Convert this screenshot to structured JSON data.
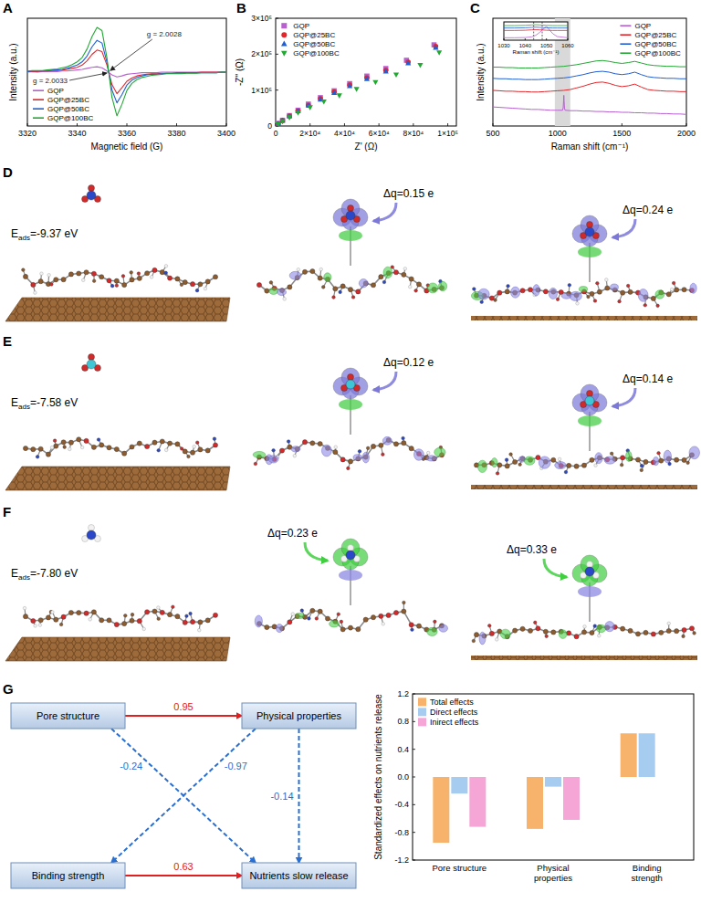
{
  "figure": {
    "panel_letters": [
      "A",
      "B",
      "C",
      "D",
      "E",
      "F",
      "G"
    ]
  },
  "chart_data": [
    {
      "type": "line",
      "x_label": "Magnetic field (G)",
      "y_label": "Intensity (a.u.)",
      "xlim": [
        3320,
        3400
      ],
      "xticks": [
        3320,
        3340,
        3360,
        3380,
        3400
      ],
      "ylim": [
        -1,
        1
      ],
      "tick_labels": "x",
      "legend": "bottom-left",
      "annotations": [
        "g = 2.0028",
        "g = 2.0033"
      ],
      "x": [
        3320,
        3322,
        3324,
        3326,
        3328,
        3330,
        3332,
        3334,
        3336,
        3338,
        3340,
        3342,
        3344,
        3346,
        3348,
        3350,
        3352,
        3354,
        3356,
        3358,
        3360,
        3362,
        3364,
        3366,
        3368,
        3370,
        3372,
        3374,
        3376,
        3378,
        3380,
        3382,
        3384,
        3386,
        3388,
        3390,
        3392,
        3394,
        3396,
        3398,
        3400
      ],
      "series": [
        {
          "name": "GQP",
          "color": "#b95fd2",
          "values": [
            0,
            0.01,
            0,
            0.01,
            0.01,
            0.01,
            0.01,
            0.02,
            0.02,
            0.03,
            0.04,
            0.05,
            0.07,
            0.09,
            0.1,
            0.08,
            0.02,
            -0.05,
            -0.09,
            -0.07,
            -0.04,
            -0.03,
            -0.02,
            -0.01,
            -0.01,
            -0.01,
            -0.01,
            0,
            0,
            0,
            0,
            0,
            0,
            0,
            0,
            0,
            0,
            0,
            0,
            0,
            0
          ]
        },
        {
          "name": "GQP@25BC",
          "color": "#e3262b",
          "values": [
            0.01,
            0.01,
            0.01,
            0.02,
            0.02,
            0.03,
            0.03,
            0.04,
            0.05,
            0.07,
            0.09,
            0.13,
            0.21,
            0.33,
            0.41,
            0.38,
            0.13,
            -0.23,
            -0.4,
            -0.29,
            -0.17,
            -0.11,
            -0.07,
            -0.05,
            -0.04,
            -0.03,
            -0.03,
            -0.02,
            -0.02,
            -0.02,
            -0.01,
            -0.01,
            -0.01,
            -0.01,
            -0.01,
            0,
            0,
            0,
            0,
            0,
            0
          ]
        },
        {
          "name": "GQP@50BC",
          "color": "#1f5fd6",
          "values": [
            0.01,
            0.02,
            0.02,
            0.02,
            0.03,
            0.04,
            0.04,
            0.05,
            0.07,
            0.1,
            0.13,
            0.19,
            0.3,
            0.47,
            0.59,
            0.54,
            0.18,
            -0.33,
            -0.57,
            -0.42,
            -0.24,
            -0.15,
            -0.1,
            -0.07,
            -0.05,
            -0.04,
            -0.04,
            -0.03,
            -0.02,
            -0.02,
            -0.02,
            -0.02,
            -0.01,
            -0.01,
            -0.01,
            -0.01,
            -0.01,
            -0.01,
            -0.01,
            0,
            0
          ]
        },
        {
          "name": "GQP@100BC",
          "color": "#22a833",
          "values": [
            0.02,
            0.03,
            0.03,
            0.03,
            0.04,
            0.05,
            0.06,
            0.08,
            0.1,
            0.14,
            0.19,
            0.27,
            0.43,
            0.66,
            0.83,
            0.77,
            0.26,
            -0.47,
            -0.81,
            -0.6,
            -0.34,
            -0.21,
            -0.14,
            -0.1,
            -0.08,
            -0.06,
            -0.05,
            -0.04,
            -0.03,
            -0.03,
            -0.03,
            -0.03,
            -0.02,
            -0.02,
            -0.02,
            -0.01,
            -0.01,
            -0.01,
            -0.01,
            0,
            0
          ]
        }
      ]
    },
    {
      "type": "scatter",
      "x_label": "Z' (Ω)",
      "y_label": "-Z'' (Ω)",
      "xlim": [
        0,
        105000
      ],
      "xticks": [
        0,
        {
          "value": 20000,
          "label": "2×10⁴"
        },
        {
          "value": 40000,
          "label": "4×10⁴"
        },
        {
          "value": 60000,
          "label": "6×10⁴"
        },
        {
          "value": 80000,
          "label": "8×10⁴"
        },
        {
          "value": 100000,
          "label": "1×10⁵"
        }
      ],
      "ylim": [
        0,
        300000
      ],
      "yticks": [
        0,
        {
          "value": 100000,
          "label": "1×10⁵"
        },
        {
          "value": 200000,
          "label": "2×10⁵"
        },
        {
          "value": 300000,
          "label": "3×10⁵"
        }
      ],
      "legend": "top-left",
      "series": [
        {
          "name": "GQP",
          "color": "#b95fd2",
          "marker": "square",
          "x": [
            1500,
            4000,
            8000,
            13000,
            19000,
            26000,
            34000,
            43000,
            53000,
            64000,
            76000,
            92000
          ],
          "values": [
            7000,
            16000,
            29000,
            44000,
            61000,
            79000,
            98000,
            118000,
            139000,
            160000,
            183000,
            226000
          ]
        },
        {
          "name": "GQP@25BC",
          "color": "#e3262b",
          "marker": "circle",
          "x": [
            1500,
            4000,
            8000,
            13000,
            19000,
            26000,
            34000,
            43000,
            53000,
            64000,
            77000,
            93000
          ],
          "values": [
            6000,
            15000,
            28000,
            42000,
            58000,
            76000,
            95000,
            114000,
            134000,
            155000,
            178000,
            222000
          ]
        },
        {
          "name": "GQP@50BC",
          "color": "#1f5fd6",
          "marker": "triangle",
          "x": [
            1500,
            4000,
            8000,
            13000,
            19000,
            26000,
            34000,
            43000,
            53000,
            64000,
            77000,
            93000
          ],
          "values": [
            6000,
            15000,
            27000,
            41000,
            57000,
            74000,
            92000,
            111000,
            131000,
            152000,
            175000,
            218000
          ]
        },
        {
          "name": "GQP@100BC",
          "color": "#22a833",
          "marker": "triangle-down",
          "x": [
            1500,
            4000,
            8000,
            13000,
            20000,
            28000,
            37000,
            47000,
            58000,
            70000,
            84000,
            95000
          ],
          "values": [
            5000,
            13000,
            24000,
            37000,
            52000,
            68000,
            85000,
            103000,
            122000,
            143000,
            170000,
            205000
          ]
        }
      ]
    },
    {
      "type": "line",
      "x_label": "Raman shift (cm⁻¹)",
      "y_label": "Intensity (a.u.)",
      "xlim": [
        500,
        2000
      ],
      "xticks": [
        500,
        1000,
        1500,
        2000
      ],
      "ylim": [
        0,
        13
      ],
      "tick_labels": "x",
      "legend": "top-right",
      "highlight": [
        980,
        1100
      ],
      "series": [
        {
          "name": "GQP",
          "color": "#b95fd2",
          "x": [
            500,
            550,
            600,
            650,
            700,
            750,
            800,
            850,
            900,
            950,
            1000,
            1040,
            1045,
            1048,
            1050,
            1052,
            1055,
            1060,
            1100,
            1150,
            1200,
            1250,
            1300,
            1350,
            1400,
            1450,
            1500,
            1550,
            1600,
            1650,
            1700,
            1750,
            1800,
            1850,
            1900,
            1950,
            2000
          ],
          "values": [
            2.3,
            2.25,
            2.2,
            2.15,
            2.1,
            2.05,
            2.0,
            2.0,
            1.95,
            1.9,
            1.9,
            1.9,
            2.2,
            3.0,
            3.7,
            3.0,
            2.1,
            1.9,
            1.85,
            1.85,
            1.8,
            1.8,
            1.75,
            1.75,
            1.7,
            1.7,
            1.65,
            1.65,
            1.6,
            1.6,
            1.55,
            1.55,
            1.5,
            1.5,
            1.45,
            1.45,
            1.4
          ]
        },
        {
          "name": "GQP@25BC",
          "color": "#e3262b",
          "x": [
            500,
            550,
            600,
            650,
            700,
            750,
            800,
            850,
            900,
            950,
            1000,
            1050,
            1100,
            1150,
            1200,
            1250,
            1300,
            1350,
            1400,
            1450,
            1500,
            1550,
            1600,
            1650,
            1700,
            1750,
            1800,
            1850,
            1900,
            1950,
            2000
          ],
          "values": [
            4.3,
            4.25,
            4.2,
            4.2,
            4.15,
            4.15,
            4.1,
            4.1,
            4.15,
            4.2,
            4.25,
            4.3,
            4.4,
            4.6,
            4.8,
            5.05,
            5.25,
            5.3,
            5.15,
            4.9,
            4.75,
            4.85,
            5.05,
            4.7,
            4.4,
            4.3,
            4.25,
            4.2,
            4.2,
            4.15,
            4.15
          ]
        },
        {
          "name": "GQP@50BC",
          "color": "#1f5fd6",
          "x": [
            500,
            550,
            600,
            650,
            700,
            750,
            800,
            850,
            900,
            950,
            1000,
            1050,
            1100,
            1150,
            1200,
            1250,
            1300,
            1350,
            1400,
            1450,
            1500,
            1550,
            1600,
            1650,
            1700,
            1750,
            1800,
            1850,
            1900,
            1950,
            2000
          ],
          "values": [
            5.75,
            5.7,
            5.7,
            5.65,
            5.65,
            5.6,
            5.6,
            5.6,
            5.65,
            5.7,
            5.75,
            5.8,
            5.9,
            6.05,
            6.2,
            6.4,
            6.55,
            6.6,
            6.5,
            6.3,
            6.2,
            6.3,
            6.5,
            6.2,
            5.95,
            5.85,
            5.8,
            5.75,
            5.75,
            5.7,
            5.7
          ]
        },
        {
          "name": "GQP@100BC",
          "color": "#22a833",
          "x": [
            500,
            550,
            600,
            650,
            700,
            750,
            800,
            850,
            900,
            950,
            1000,
            1050,
            1100,
            1150,
            1200,
            1250,
            1300,
            1350,
            1400,
            1450,
            1500,
            1550,
            1600,
            1650,
            1700,
            1750,
            1800,
            1850,
            1900,
            1950,
            2000
          ],
          "values": [
            7.1,
            7.1,
            7.05,
            7.05,
            7.0,
            7.0,
            7.0,
            7.0,
            7.05,
            7.1,
            7.15,
            7.2,
            7.3,
            7.4,
            7.55,
            7.7,
            7.85,
            7.9,
            7.8,
            7.65,
            7.55,
            7.65,
            7.8,
            7.6,
            7.4,
            7.3,
            7.25,
            7.2,
            7.2,
            7.15,
            7.15
          ]
        }
      ]
    },
    {
      "type": "line",
      "x_label": "Raman shift (cm⁻¹)",
      "xlim": [
        1030,
        1060
      ],
      "xticks": [
        1030,
        1040,
        1050,
        1060
      ],
      "ylim": [
        0,
        4.5
      ],
      "tick_labels": "x",
      "reference_lines": [
        1044,
        1048
      ],
      "x": [
        1030,
        1035,
        1040,
        1043,
        1045,
        1047,
        1050,
        1053,
        1055,
        1060
      ],
      "series": [
        {
          "color": "#b95fd2",
          "values": [
            0.6,
            0.6,
            0.65,
            0.8,
            1.2,
            2.0,
            3.4,
            1.6,
            0.9,
            0.6
          ]
        },
        {
          "color": "#e3262b",
          "values": [
            2.4,
            2.4,
            2.45,
            2.55,
            2.6,
            2.55,
            2.45,
            2.4,
            2.4,
            2.4
          ]
        },
        {
          "color": "#1f5fd6",
          "values": [
            3.0,
            3.0,
            3.05,
            3.15,
            3.2,
            3.15,
            3.05,
            3.0,
            3.0,
            3.0
          ]
        },
        {
          "color": "#22a833",
          "values": [
            3.6,
            3.6,
            3.65,
            3.75,
            3.8,
            3.75,
            3.65,
            3.6,
            3.6,
            3.6
          ]
        }
      ]
    },
    {
      "type": "bar",
      "y_label": "Standardized effects on nutrients release",
      "categories": [
        "Pore structure",
        "Physical properties",
        "Binding strength"
      ],
      "ylim": [
        -1.2,
        1.2
      ],
      "yticks": [
        -1.2,
        -0.8,
        -0.4,
        {
          "value": 0,
          "label": "0.0"
        },
        0.4,
        0.8,
        1.2
      ],
      "legend": "top-left",
      "series": [
        {
          "name": "Total effects",
          "color": "#f7b36b",
          "values": [
            -0.95,
            -0.75,
            0.63
          ]
        },
        {
          "name": "Direct effects",
          "color": "#a6cdf0",
          "values": [
            -0.24,
            -0.14,
            0.63
          ]
        },
        {
          "name": "Inirect effects",
          "color": "#f5a6d6",
          "values": [
            -0.72,
            -0.62,
            0
          ]
        }
      ]
    }
  ],
  "structures": [
    {
      "energy": {
        "symbol": "E",
        "subscript": "ads",
        "text": "=-9.37 eV"
      },
      "charges": [
        "Δq=0.15 e",
        "Δq=0.24 e"
      ],
      "color": "#7b78d8"
    },
    {
      "energy": {
        "symbol": "E",
        "subscript": "ads",
        "text": "=-7.58 eV"
      },
      "charges": [
        "Δq=0.12 e",
        "Δq=0.14 e"
      ],
      "color": "#7b78d8"
    },
    {
      "energy": {
        "symbol": "E",
        "subscript": "ads",
        "text": "=-7.80 eV"
      },
      "charges": [
        "Δq=0.23 e",
        "Δq=0.33 e"
      ],
      "color": "#3fcf3f"
    }
  ],
  "path_model": {
    "nodes": [
      {
        "label": "Pore structure"
      },
      {
        "label": "Physical properties"
      },
      {
        "label": "Binding strength"
      },
      {
        "label": "Nutrients slow release"
      }
    ],
    "edges": [
      {
        "from": 0,
        "to": 1,
        "value": 0.95
      },
      {
        "from": 0,
        "to": 3,
        "value": -0.24
      },
      {
        "from": 1,
        "to": 2,
        "value": -0.97
      },
      {
        "from": 1,
        "to": 3,
        "value": -0.14
      },
      {
        "from": 2,
        "to": 3,
        "value": 0.63
      }
    ]
  }
}
